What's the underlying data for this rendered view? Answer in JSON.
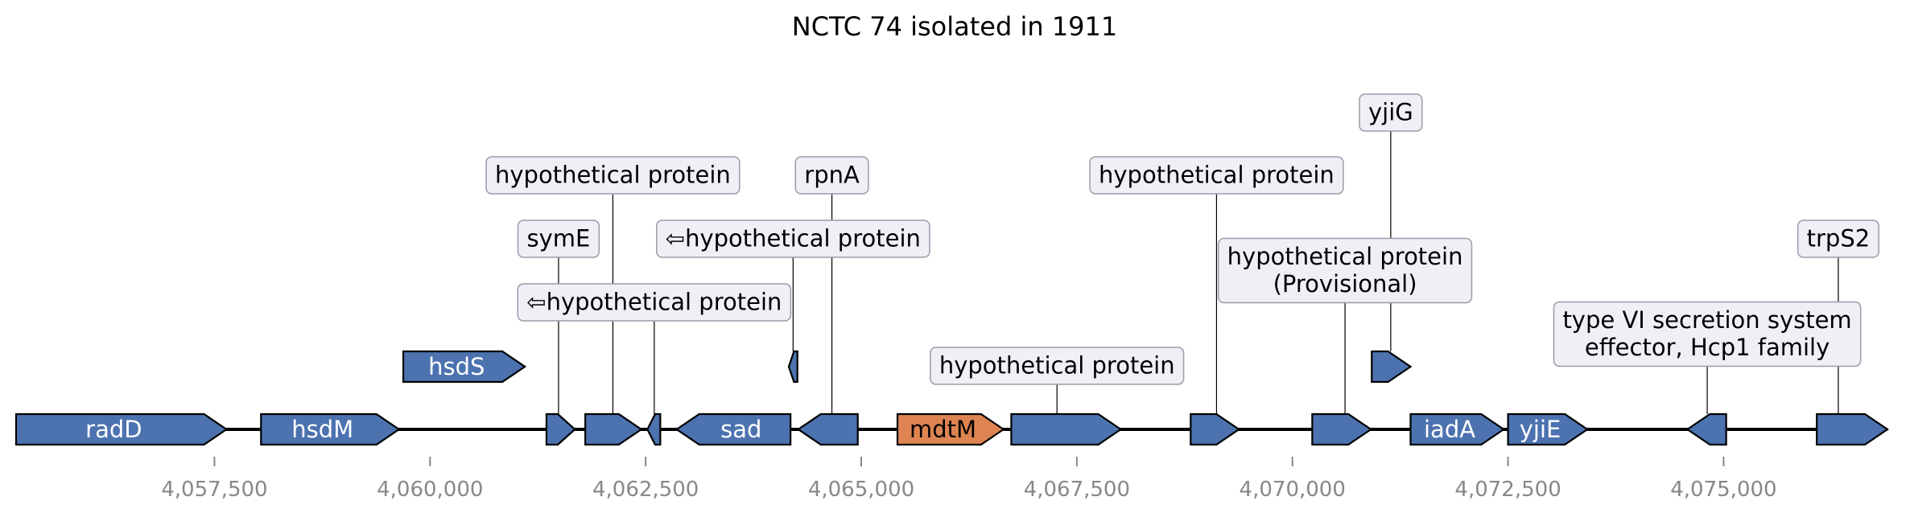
{
  "title": "NCTC 74 isolated in 1911",
  "colors": {
    "gene": "#4C72B0",
    "highlight": "#DD8452",
    "box": "#EEF0F6",
    "box_border": "#9C9CA8",
    "tick_label": "#888888"
  },
  "axis": {
    "xlim": [
      4055200,
      4076900
    ],
    "ticks": [
      {
        "value": 4057500,
        "label": "4,057,500"
      },
      {
        "value": 4060000,
        "label": "4,060,000"
      },
      {
        "value": 4062500,
        "label": "4,062,500"
      },
      {
        "value": 4065000,
        "label": "4,065,000"
      },
      {
        "value": 4067500,
        "label": "4,067,500"
      },
      {
        "value": 4070000,
        "label": "4,070,000"
      },
      {
        "value": 4072500,
        "label": "4,072,500"
      },
      {
        "value": 4075000,
        "label": "4,075,000"
      }
    ]
  },
  "chart_data": {
    "type": "gene-map",
    "title": "NCTC 74 isolated in 1911",
    "genes": [
      {
        "label": "radD",
        "start": 4055200,
        "end": 4057640,
        "strand": 1,
        "level": 0,
        "color": "gene"
      },
      {
        "label": "hsdM",
        "start": 4058040,
        "end": 4059640,
        "strand": 1,
        "level": 0,
        "color": "gene"
      },
      {
        "label": "hsdS",
        "start": 4059690,
        "end": 4061100,
        "strand": 1,
        "level": 1,
        "color": "gene"
      },
      {
        "label": "",
        "start": 4061350,
        "end": 4061680,
        "strand": 1,
        "level": 0,
        "color": "gene"
      },
      {
        "label": "",
        "start": 4061800,
        "end": 4062450,
        "strand": 1,
        "level": 0,
        "color": "gene"
      },
      {
        "label": "",
        "start": 4062520,
        "end": 4062670,
        "strand": -1,
        "level": 0,
        "color": "gene"
      },
      {
        "label": "sad",
        "start": 4062860,
        "end": 4064180,
        "strand": -1,
        "level": 0,
        "color": "gene"
      },
      {
        "label": "",
        "start": 4064160,
        "end": 4064260,
        "strand": -1,
        "level": 1,
        "color": "gene"
      },
      {
        "label": "",
        "start": 4064270,
        "end": 4064960,
        "strand": -1,
        "level": 0,
        "color": "gene"
      },
      {
        "label": "mdtM",
        "start": 4065420,
        "end": 4066650,
        "strand": 1,
        "level": 0,
        "color": "highlight"
      },
      {
        "label": "",
        "start": 4066740,
        "end": 4068010,
        "strand": 1,
        "level": 0,
        "color": "gene"
      },
      {
        "label": "",
        "start": 4068820,
        "end": 4069380,
        "strand": 1,
        "level": 0,
        "color": "gene"
      },
      {
        "label": "",
        "start": 4070230,
        "end": 4070910,
        "strand": 1,
        "level": 0,
        "color": "gene"
      },
      {
        "label": "",
        "start": 4070920,
        "end": 4071370,
        "strand": 1,
        "level": 1,
        "color": "gene"
      },
      {
        "label": "iadA",
        "start": 4071370,
        "end": 4072450,
        "strand": 1,
        "level": 0,
        "color": "gene"
      },
      {
        "label": "yjiE",
        "start": 4072500,
        "end": 4073420,
        "strand": 1,
        "level": 0,
        "color": "gene"
      },
      {
        "label": "",
        "start": 4074580,
        "end": 4075030,
        "strand": -1,
        "level": 0,
        "color": "gene"
      },
      {
        "label": "",
        "start": 4076080,
        "end": 4076900,
        "strand": 1,
        "level": 0,
        "color": "gene"
      }
    ],
    "annotations": [
      {
        "lines": [
          "symE"
        ],
        "anchor": 4061490,
        "gene_level": 0,
        "row": 3
      },
      {
        "lines": [
          "hypothetical protein"
        ],
        "anchor": 4062120,
        "gene_level": 0,
        "row": 4
      },
      {
        "lines": [
          "⇦hypothetical protein"
        ],
        "anchor": 4062600,
        "gene_level": 0,
        "row": 2
      },
      {
        "lines": [
          "⇦hypothetical protein"
        ],
        "anchor": 4064210,
        "gene_level": 1,
        "row": 3
      },
      {
        "lines": [
          "rpnA"
        ],
        "anchor": 4064660,
        "gene_level": 0,
        "row": 4
      },
      {
        "lines": [
          "hypothetical protein"
        ],
        "anchor": 4067270,
        "gene_level": 0,
        "row": 1
      },
      {
        "lines": [
          "hypothetical protein"
        ],
        "anchor": 4069120,
        "gene_level": 0,
        "row": 4
      },
      {
        "lines": [
          "hypothetical protein",
          "(Provisional)"
        ],
        "anchor": 4070610,
        "gene_level": 0,
        "row": 2.5
      },
      {
        "lines": [
          "yjiG"
        ],
        "anchor": 4071140,
        "gene_level": 1,
        "row": 5
      },
      {
        "lines": [
          "type VI secretion system",
          "effector, Hcp1 family"
        ],
        "anchor": 4074810,
        "gene_level": 0,
        "row": 1.5
      },
      {
        "lines": [
          "trpS2"
        ],
        "anchor": 4076330,
        "gene_level": 0,
        "row": 3
      }
    ]
  }
}
